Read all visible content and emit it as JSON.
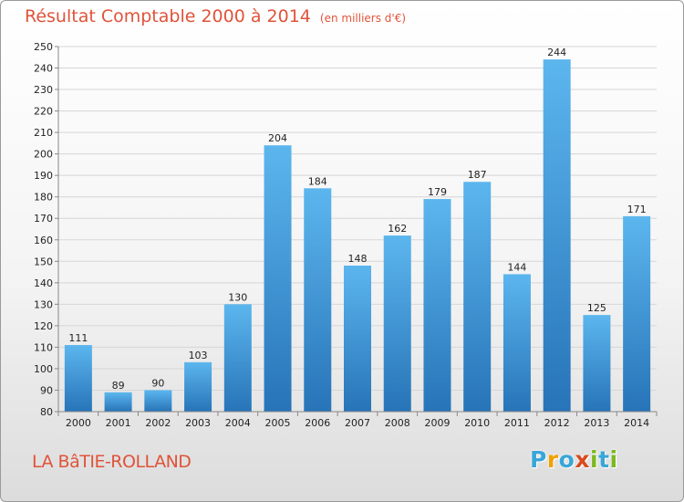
{
  "title": "Résultat Comptable 2000 à 2014",
  "unit": "(en milliers d'€)",
  "commune": "LA BâTIE-ROLLAND",
  "logo": {
    "letters": [
      "P",
      "r",
      "o",
      "x",
      "i",
      "t",
      "i"
    ],
    "colors": [
      "#3aa6d8",
      "#f0a000",
      "#3aa6d8",
      "#d94a1e",
      "#7cb820",
      "#3aa6d8",
      "#7cb820"
    ]
  },
  "colors": {
    "bar_light": "#5cb6ee",
    "bar_dark": "#2774b8",
    "title": "#e0533a"
  },
  "chart_data": {
    "type": "bar",
    "title": "Résultat Comptable 2000 à 2014",
    "ylabel": "en milliers d'€",
    "categories": [
      "2000",
      "2001",
      "2002",
      "2003",
      "2004",
      "2005",
      "2006",
      "2007",
      "2008",
      "2009",
      "2010",
      "2011",
      "2012",
      "2013",
      "2014"
    ],
    "values": [
      111,
      89,
      90,
      103,
      130,
      204,
      184,
      148,
      162,
      179,
      187,
      144,
      244,
      125,
      171
    ],
    "ylim": [
      80,
      250
    ],
    "yticks": [
      80,
      90,
      100,
      110,
      120,
      130,
      140,
      150,
      160,
      170,
      180,
      190,
      200,
      210,
      220,
      230,
      240,
      250
    ],
    "grid": true
  }
}
